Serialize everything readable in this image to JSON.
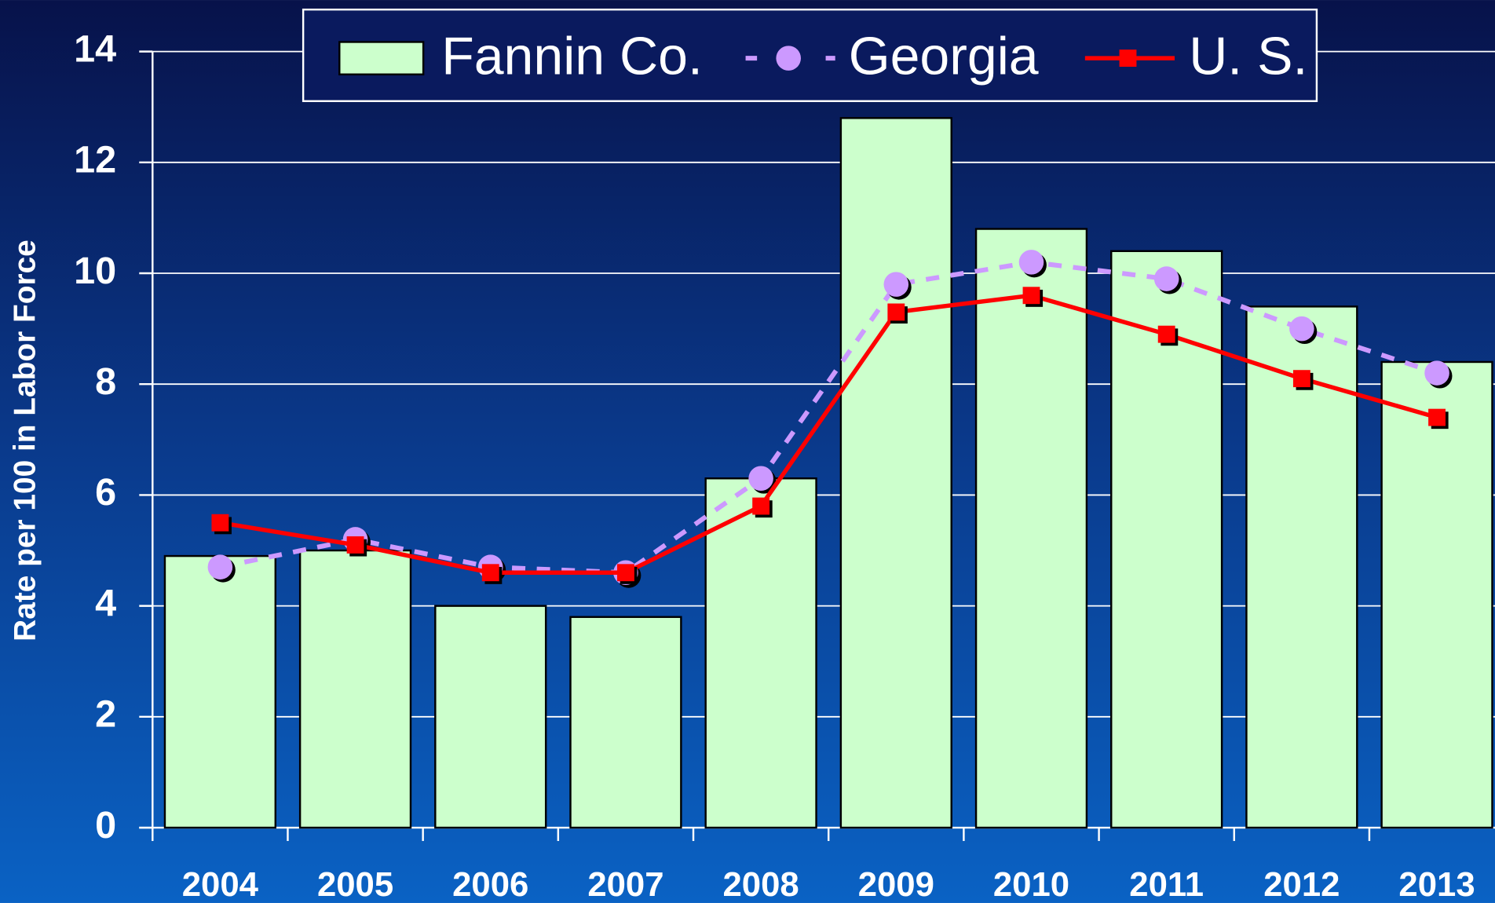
{
  "chart_data": {
    "type": "bar-line",
    "y_label": "Rate per 100 in Labor Force",
    "categories": [
      "2004",
      "2005",
      "2006",
      "2007",
      "2008",
      "2009",
      "2010",
      "2011",
      "2012",
      "2013"
    ],
    "series": [
      {
        "name": "Fannin Co.",
        "type": "bar",
        "color": "#ccffcc",
        "values": [
          4.9,
          5.0,
          4.0,
          3.8,
          6.3,
          12.8,
          10.8,
          10.4,
          9.4,
          8.4
        ]
      },
      {
        "name": "Georgia",
        "type": "line",
        "color": "#cc99ff",
        "marker": "circle",
        "dashed": true,
        "values": [
          4.7,
          5.2,
          4.7,
          4.6,
          6.3,
          9.8,
          10.2,
          9.9,
          9.0,
          8.2
        ]
      },
      {
        "name": "U. S.",
        "type": "line",
        "color": "#ff0000",
        "marker": "square",
        "dashed": false,
        "values": [
          5.5,
          5.1,
          4.6,
          4.6,
          5.8,
          9.3,
          9.6,
          8.9,
          8.1,
          7.4
        ]
      }
    ],
    "ylim": [
      0,
      14
    ],
    "yticks": [
      0,
      2,
      4,
      6,
      8,
      10,
      12,
      14
    ],
    "grid": true,
    "legend": "top"
  }
}
